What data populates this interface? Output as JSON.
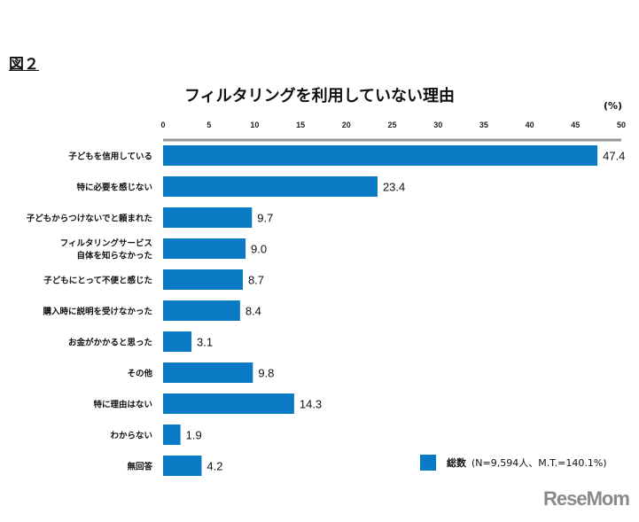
{
  "figure_label": "図２",
  "unit": "(%)",
  "legend": {
    "name": "総数",
    "note": "(N=9,594人、M.T.=140.1%)"
  },
  "logo": "ReseMom",
  "chart_data": {
    "type": "bar",
    "orientation": "horizontal",
    "title": "フィルタリングを利用していない理由",
    "xlim": [
      0,
      50
    ],
    "ticks": [
      0,
      5,
      10,
      15,
      20,
      25,
      30,
      35,
      40,
      45,
      50
    ],
    "color": "#0a7ac4",
    "categories": [
      [
        "子どもを信用している"
      ],
      [
        "特に必要を感じない"
      ],
      [
        "子どもからつけないでと頼まれた"
      ],
      [
        "フィルタリングサービス",
        "自体を知らなかった"
      ],
      [
        "子どもにとって不便と感じた"
      ],
      [
        "購入時に説明を受けなかった"
      ],
      [
        "お金がかかると思った"
      ],
      [
        "その他"
      ],
      [
        "特に理由はない"
      ],
      [
        "わからない"
      ],
      [
        "無回答"
      ]
    ],
    "values": [
      47.4,
      23.4,
      9.7,
      9.0,
      8.7,
      8.4,
      3.1,
      9.8,
      14.3,
      1.9,
      4.2
    ],
    "grid": false
  }
}
